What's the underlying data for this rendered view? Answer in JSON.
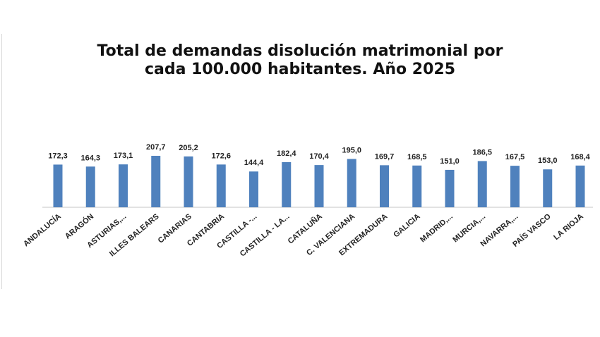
{
  "chart_data": {
    "type": "bar",
    "title_lines": [
      "Total de demandas disolución matrimonial por",
      "cada 100.000 habitantes. Año 2025"
    ],
    "categories": [
      "ANDALUCÍA",
      "ARAGÓN",
      "ASTURIAS,...",
      "ILLES BALEARS",
      "CANARIAS",
      "CANTABRIA",
      "CASTILLA -...",
      "CASTILLA - LA...",
      "CATALUÑA",
      "C. VALENCIANA",
      "EXTREMADURA",
      "GALICIA",
      "MADRID,...",
      "MURCIA,...",
      "NAVARRA,...",
      "PAÍS VASCO",
      "LA RIOJA"
    ],
    "values": [
      172.3,
      164.3,
      173.1,
      207.7,
      205.2,
      172.6,
      144.4,
      182.4,
      170.4,
      195.0,
      169.7,
      168.5,
      151.0,
      186.5,
      167.5,
      153.0,
      168.4
    ],
    "data_labels": [
      "172,3",
      "164,3",
      "173,1",
      "207,7",
      "205,2",
      "172,6",
      "144,4",
      "182,4",
      "170,4",
      "195,0",
      "169,7",
      "168,5",
      "151,0",
      "186,5",
      "167,5",
      "153,0",
      "168,4"
    ],
    "xlabel": "",
    "ylabel": "",
    "ylim": [
      0,
      210
    ],
    "grid": false,
    "legend": "none",
    "bar_color": "#4f81bd"
  }
}
